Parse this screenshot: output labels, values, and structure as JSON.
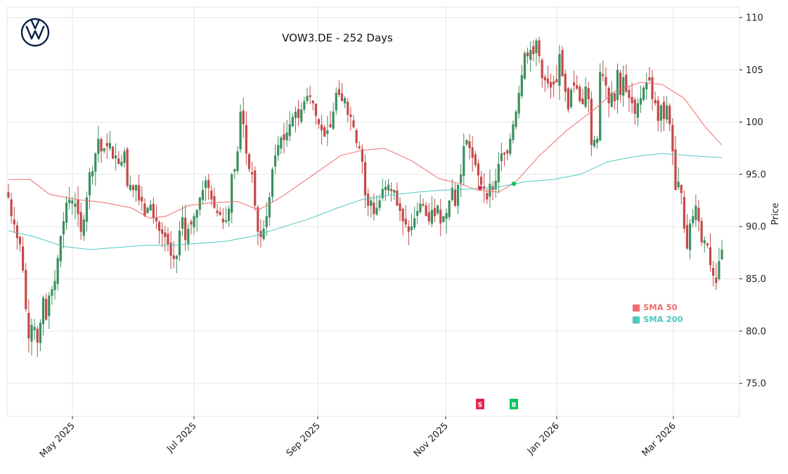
{
  "title": "VOW3.DE - 252 Days",
  "y_axis_label": "Price",
  "legend": [
    {
      "label": "SMA 50",
      "color": "#f06e6e"
    },
    {
      "label": "SMA 200",
      "color": "#4fc9bf"
    }
  ],
  "signals": [
    {
      "label": "S",
      "color": "#e0264f",
      "x_index": 171
    },
    {
      "label": "B",
      "color": "#13c15f",
      "x_index": 183
    }
  ],
  "colors": {
    "up": "#3a8f5e",
    "down": "#c44848",
    "sma50": "#f06e6e",
    "sma200": "#4fc9bf",
    "grid": "#e6e6e6",
    "logo": "#0b1f47"
  },
  "chart_data": {
    "type": "candlestick",
    "title": "VOW3.DE - 252 Days",
    "xlabel": "",
    "ylabel": "Price",
    "ylim": [
      71.8,
      110.9
    ],
    "y_ticks": [
      "75.0",
      "80.0",
      "85.0",
      "90.0",
      "95.0",
      "100",
      "105",
      "110"
    ],
    "x_ticks": [
      "May 2025",
      "Jul 2025",
      "Sep 2025",
      "Nov 2025",
      "Jan 2026",
      "Mar 2026"
    ],
    "grid": true,
    "legend_position": "lower right",
    "series": [
      {
        "name": "SMA 50",
        "approx_points": [
          [
            0,
            94.5
          ],
          [
            8,
            94.5
          ],
          [
            15,
            93.1
          ],
          [
            25,
            92.6
          ],
          [
            35,
            92.3
          ],
          [
            45,
            91.8
          ],
          [
            52,
            90.8
          ],
          [
            58,
            91.0
          ],
          [
            66,
            92.0
          ],
          [
            75,
            92.3
          ],
          [
            84,
            92.4
          ],
          [
            92,
            91.6
          ],
          [
            100,
            92.8
          ],
          [
            110,
            94.6
          ],
          [
            122,
            96.8
          ],
          [
            130,
            97.3
          ],
          [
            138,
            97.5
          ],
          [
            148,
            96.3
          ],
          [
            158,
            94.6
          ],
          [
            166,
            94.1
          ],
          [
            172,
            93.5
          ],
          [
            180,
            93.3
          ],
          [
            186,
            94.2
          ],
          [
            195,
            96.8
          ],
          [
            205,
            99.2
          ],
          [
            215,
            101.2
          ],
          [
            223,
            103.0
          ],
          [
            232,
            103.8
          ],
          [
            240,
            103.6
          ],
          [
            248,
            102.3
          ],
          [
            256,
            99.5
          ],
          [
            262,
            97.8
          ]
        ]
      },
      {
        "name": "SMA 200",
        "approx_points": [
          [
            0,
            89.6
          ],
          [
            10,
            89.0
          ],
          [
            20,
            88.1
          ],
          [
            30,
            87.8
          ],
          [
            40,
            88.0
          ],
          [
            50,
            88.2
          ],
          [
            60,
            88.2
          ],
          [
            70,
            88.4
          ],
          [
            80,
            88.6
          ],
          [
            90,
            89.1
          ],
          [
            100,
            89.9
          ],
          [
            110,
            90.7
          ],
          [
            120,
            91.7
          ],
          [
            130,
            92.6
          ],
          [
            140,
            93.0
          ],
          [
            150,
            93.3
          ],
          [
            160,
            93.5
          ],
          [
            170,
            93.6
          ],
          [
            180,
            93.8
          ],
          [
            190,
            94.3
          ],
          [
            200,
            94.5
          ],
          [
            210,
            95.0
          ],
          [
            220,
            96.2
          ],
          [
            230,
            96.7
          ],
          [
            240,
            97.0
          ],
          [
            250,
            96.8
          ],
          [
            262,
            96.6
          ]
        ]
      }
    ],
    "markers": [
      {
        "label": "SMA cross down (S)",
        "approx_x": "late Nov 2025",
        "price": 93.7
      },
      {
        "label": "SMA cross up (B)",
        "approx_x": "early Dec 2025",
        "price": 94.1
      }
    ],
    "closes": [
      92.8,
      91.0,
      90.2,
      88.9,
      88.3,
      85.8,
      82.1,
      79.3,
      80.6,
      80.4,
      78.9,
      80.8,
      83.2,
      81.1,
      83.4,
      84.0,
      84.8,
      87.0,
      89.1,
      90.5,
      92.3,
      92.6,
      92.5,
      92.2,
      91.2,
      89.5,
      90.7,
      92.8,
      95.2,
      95.3,
      97.0,
      98.4,
      97.2,
      97.5,
      97.7,
      98.0,
      96.5,
      96.8,
      96.0,
      96.2,
      97.2,
      93.9,
      94.0,
      93.5,
      94.0,
      92.5,
      92.4,
      91.0,
      91.8,
      92.1,
      90.8,
      90.5,
      89.6,
      89.3,
      89.0,
      88.3,
      87.2,
      86.9,
      87.2,
      89.6,
      90.9,
      88.7,
      89.8,
      90.2,
      91.0,
      91.6,
      92.8,
      93.5,
      94.4,
      93.7,
      92.6,
      91.8,
      91.3,
      91.1,
      90.4,
      90.6,
      91.7,
      95.0,
      95.5,
      97.2,
      101.0,
      99.8,
      97.0,
      95.5,
      95.0,
      92.0,
      89.5,
      89.0,
      89.8,
      91.0,
      92.8,
      95.5,
      96.8,
      97.8,
      98.5,
      98.3,
      99.0,
      99.8,
      100.5,
      101.0,
      100.4,
      101.2,
      102.0,
      102.5,
      102.4,
      101.8,
      100.6,
      99.8,
      99.2,
      98.6,
      99.2,
      99.5,
      101.0,
      102.8,
      102.6,
      102.0,
      102.3,
      100.7,
      100.5,
      99.5,
      98.0,
      97.5,
      96.2,
      93.0,
      92.0,
      92.5,
      91.2,
      91.8,
      92.5,
      93.6,
      93.8,
      94.0,
      93.4,
      93.5,
      92.0,
      91.5,
      90.5,
      90.2,
      89.5,
      90.0,
      90.8,
      91.5,
      92.2,
      92.0,
      91.0,
      90.5,
      91.6,
      91.0,
      92.0,
      90.3,
      91.0,
      91.3,
      92.5,
      93.7,
      92.0,
      94.0,
      95.0,
      97.7,
      98.3,
      97.5,
      96.6,
      95.9,
      94.9,
      94.0,
      93.6,
      92.6,
      94.1,
      93.5,
      94.4,
      96.0,
      97.0,
      96.9,
      97.0,
      98.4,
      99.8,
      101.0,
      102.8,
      104.5,
      106.6,
      106.3,
      106.9,
      106.5,
      107.8,
      106.3,
      104.2,
      104.0,
      103.7,
      103.3,
      103.6,
      103.8,
      106.5,
      104.4,
      102.9,
      101.2,
      103.1,
      103.5,
      103.2,
      102.0,
      101.7,
      103.4,
      102.2,
      97.8,
      98.3,
      98.4,
      104.8,
      104.4,
      103.5,
      101.8,
      102.8,
      102.0,
      105.0,
      102.6,
      104.3,
      102.9,
      102.3,
      101.8,
      100.8,
      101.8,
      102.3,
      103.3,
      103.8,
      104.0,
      102.2,
      101.8,
      100.1,
      101.6,
      100.3,
      101.6,
      99.8,
      97.2,
      93.5,
      94.3,
      93.2,
      89.8,
      87.9,
      90.3,
      91.0,
      92.0,
      90.5,
      88.5,
      88.7,
      88.2,
      86.3,
      85.3,
      84.6,
      86.7,
      87.8
    ]
  }
}
